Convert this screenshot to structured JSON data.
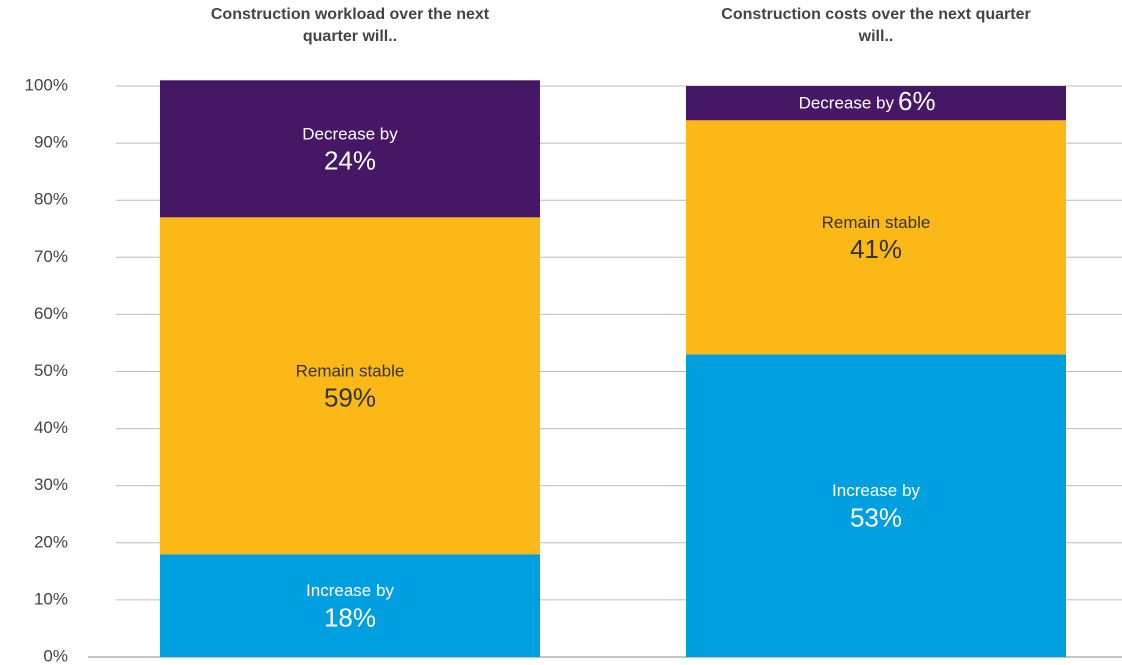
{
  "chart_data": {
    "type": "stacked_bar",
    "categories": [
      "Construction workload over the next quarter will..",
      "Construction costs over the next quarter will.."
    ],
    "series": [
      {
        "name": "Increase by",
        "color": "#009fdf",
        "values": [
          18,
          53
        ],
        "value_labels": [
          "18%",
          "53%"
        ]
      },
      {
        "name": "Remain stable",
        "color": "#fbb817",
        "values": [
          59,
          41
        ],
        "value_labels": [
          "59%",
          "41%"
        ]
      },
      {
        "name": "Decrease by",
        "color": "#461765",
        "values": [
          24,
          6
        ],
        "value_labels": [
          "24%",
          "6%"
        ]
      }
    ],
    "ylim": [
      0,
      100
    ],
    "yticks": [
      {
        "value": 0,
        "label": "0%"
      },
      {
        "value": 10,
        "label": "10%"
      },
      {
        "value": 20,
        "label": "20%"
      },
      {
        "value": 30,
        "label": "30%"
      },
      {
        "value": 40,
        "label": "40%"
      },
      {
        "value": 50,
        "label": "50%"
      },
      {
        "value": 60,
        "label": "60%"
      },
      {
        "value": 70,
        "label": "70%"
      },
      {
        "value": 80,
        "label": "80%"
      },
      {
        "value": 90,
        "label": "90%"
      },
      {
        "value": 100,
        "label": "100%"
      }
    ],
    "grid": true
  }
}
